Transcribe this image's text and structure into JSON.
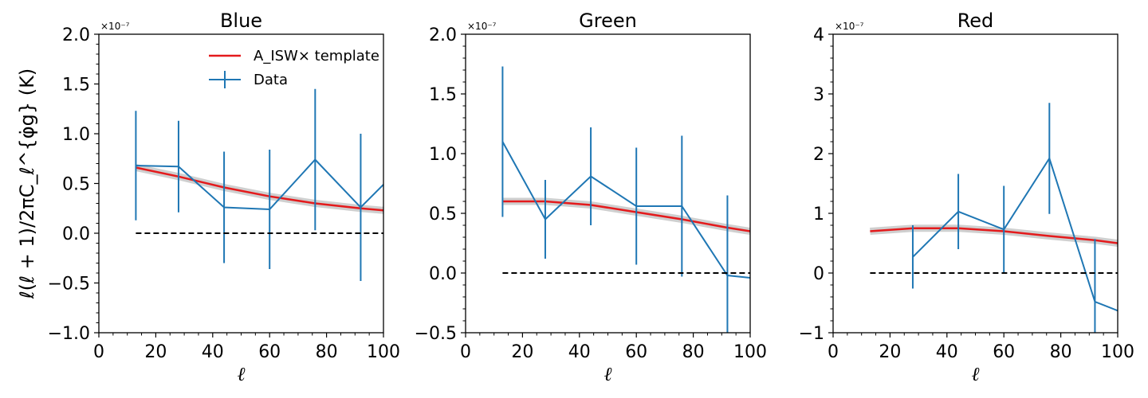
{
  "chart_data": [
    {
      "type": "line",
      "title": "Blue",
      "xlabel": "ℓ",
      "ylabel": "ℓ(ℓ + 1)/2πC_ℓ^{φ̇g} (K)",
      "offset_text": "×10⁻⁷",
      "xlim": [
        0,
        100
      ],
      "ylim": [
        -1.0,
        2.0
      ],
      "xticks": [
        0,
        20,
        40,
        60,
        80,
        100
      ],
      "xtick_labels": [
        "0",
        "20",
        "40",
        "60",
        "80",
        "100"
      ],
      "yticks": [
        -1.0,
        -0.5,
        0.0,
        0.5,
        1.0,
        1.5,
        2.0
      ],
      "ytick_labels": [
        "−1.0",
        "−0.5",
        "0.0",
        "0.5",
        "1.0",
        "1.5",
        "2.0"
      ],
      "legend": {
        "placement": "top-right",
        "entries": [
          {
            "label": "A_ISW× template",
            "color": "#e41a1c"
          },
          {
            "label": "Data",
            "color": "#1f77b4"
          }
        ]
      },
      "series": [
        {
          "name": "A_ISW× template",
          "color": "#e41a1c",
          "x": [
            13,
            28,
            44,
            60,
            76,
            92,
            100
          ],
          "values": [
            0.66,
            0.57,
            0.46,
            0.37,
            0.3,
            0.25,
            0.23
          ]
        },
        {
          "name": "Data",
          "color": "#1f77b4",
          "x": [
            13,
            28,
            44,
            60,
            76,
            92,
            100
          ],
          "values": [
            0.68,
            0.67,
            0.26,
            0.24,
            0.74,
            0.26,
            0.49
          ],
          "errors": [
            0.55,
            0.46,
            0.56,
            0.6,
            0.71,
            0.74,
            null
          ]
        },
        {
          "name": "zero",
          "color": "#000000",
          "dashed": true,
          "x": [
            13,
            100
          ],
          "values": [
            0,
            0
          ]
        }
      ]
    },
    {
      "type": "line",
      "title": "Green",
      "xlabel": "ℓ",
      "offset_text": "×10⁻⁷",
      "xlim": [
        0,
        100
      ],
      "ylim": [
        -0.5,
        2.0
      ],
      "xticks": [
        0,
        20,
        40,
        60,
        80,
        100
      ],
      "xtick_labels": [
        "0",
        "20",
        "40",
        "60",
        "80",
        "100"
      ],
      "yticks": [
        -0.5,
        0.0,
        0.5,
        1.0,
        1.5,
        2.0
      ],
      "ytick_labels": [
        "−0.5",
        "0.0",
        "0.5",
        "1.0",
        "1.5",
        "2.0"
      ],
      "series": [
        {
          "name": "A_ISW× template",
          "color": "#e41a1c",
          "x": [
            13,
            28,
            44,
            60,
            76,
            92,
            100
          ],
          "values": [
            0.6,
            0.6,
            0.57,
            0.51,
            0.45,
            0.38,
            0.35
          ]
        },
        {
          "name": "Data",
          "color": "#1f77b4",
          "x": [
            13,
            28,
            44,
            60,
            76,
            92,
            100
          ],
          "values": [
            1.1,
            0.45,
            0.81,
            0.56,
            0.56,
            -0.02,
            -0.04
          ],
          "errors": [
            0.63,
            0.33,
            0.41,
            0.49,
            0.59,
            0.67,
            null
          ]
        },
        {
          "name": "zero",
          "color": "#000000",
          "dashed": true,
          "x": [
            13,
            100
          ],
          "values": [
            0,
            0
          ]
        }
      ]
    },
    {
      "type": "line",
      "title": "Red",
      "xlabel": "ℓ",
      "offset_text": "×10⁻⁷",
      "xlim": [
        0,
        100
      ],
      "ylim": [
        -1,
        4
      ],
      "xticks": [
        0,
        20,
        40,
        60,
        80,
        100
      ],
      "xtick_labels": [
        "0",
        "20",
        "40",
        "60",
        "80",
        "100"
      ],
      "yticks": [
        -1,
        0,
        1,
        2,
        3,
        4
      ],
      "ytick_labels": [
        "−1",
        "0",
        "1",
        "2",
        "3",
        "4"
      ],
      "series": [
        {
          "name": "A_ISW× template",
          "color": "#e41a1c",
          "x": [
            13,
            28,
            44,
            60,
            76,
            92,
            100
          ],
          "values": [
            0.7,
            0.75,
            0.75,
            0.7,
            0.62,
            0.55,
            0.5
          ]
        },
        {
          "name": "Data",
          "color": "#1f77b4",
          "x": [
            28,
            44,
            60,
            76,
            92,
            100
          ],
          "values": [
            0.27,
            1.03,
            0.73,
            1.92,
            -0.48,
            -0.63
          ],
          "errors": [
            0.53,
            0.63,
            0.73,
            0.93,
            1.05,
            null
          ]
        },
        {
          "name": "zero",
          "color": "#000000",
          "dashed": true,
          "x": [
            13,
            100
          ],
          "values": [
            0,
            0
          ]
        }
      ]
    }
  ]
}
